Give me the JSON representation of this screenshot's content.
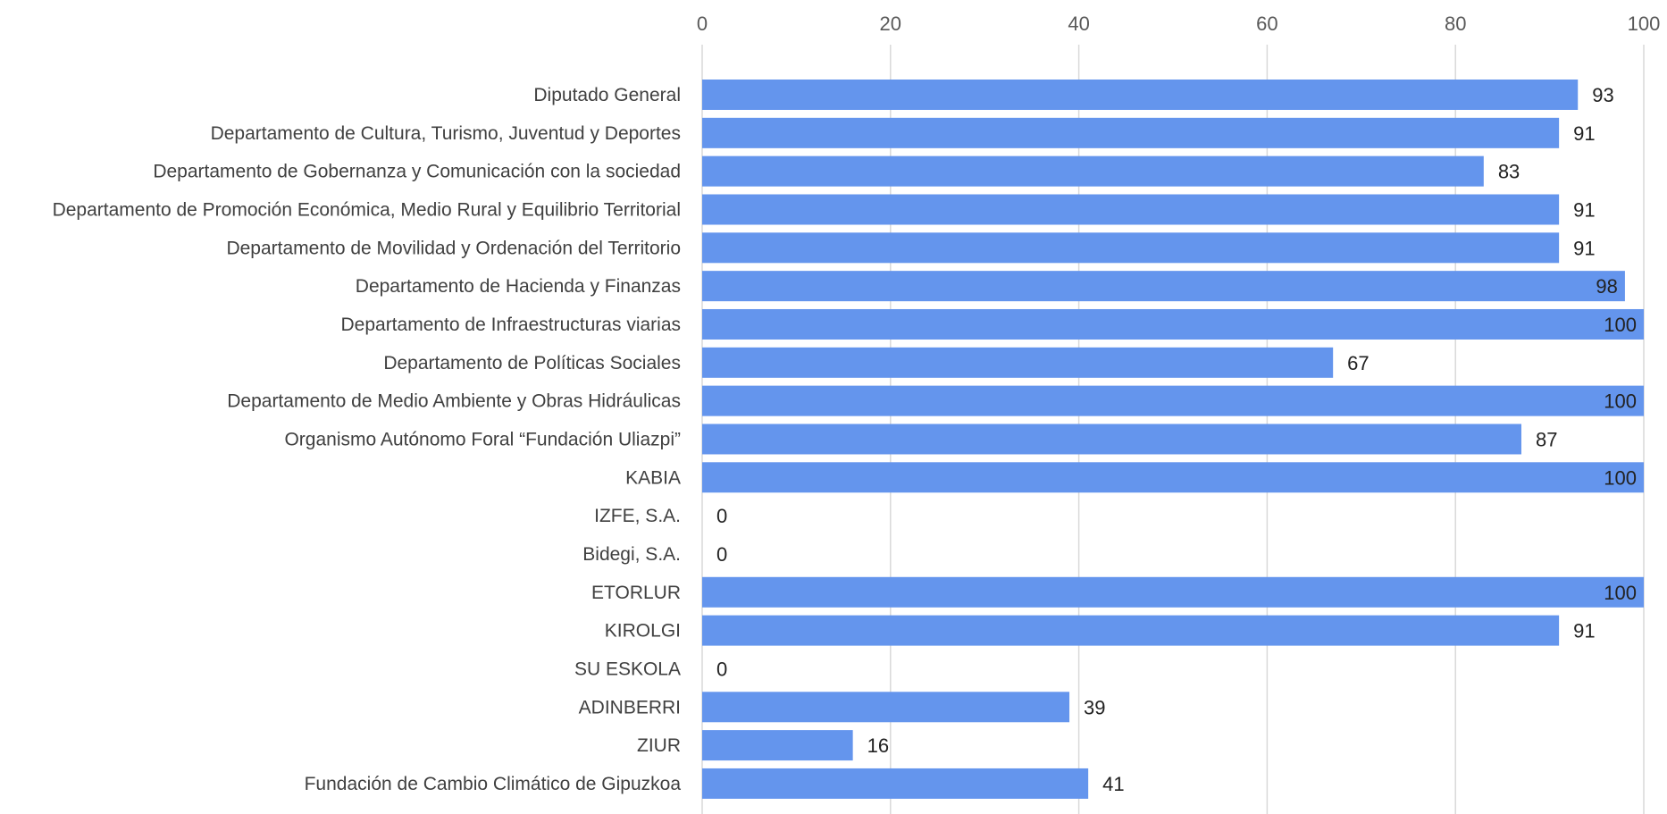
{
  "chart_data": {
    "type": "bar",
    "orientation": "horizontal",
    "categories": [
      "Diputado General",
      "Departamento de Cultura, Turismo, Juventud y Deportes",
      "Departamento de Gobernanza y Comunicación con la sociedad",
      "Departamento de Promoción Económica, Medio Rural y Equilibrio Territorial",
      "Departamento de Movilidad y Ordenación del Territorio",
      "Departamento de Hacienda y Finanzas",
      "Departamento de Infraestructuras viarias",
      "Departamento de Políticas Sociales",
      "Departamento de Medio Ambiente y Obras Hidráulicas",
      "Organismo Autónomo Foral “Fundación Uliazpi”",
      "KABIA",
      "IZFE, S.A.",
      "Bidegi, S.A.",
      "ETORLUR",
      "KIROLGI",
      "SU ESKOLA",
      "ADINBERRI",
      "ZIUR",
      "Fundación de Cambio Climático de Gipuzkoa"
    ],
    "values": [
      93,
      91,
      83,
      91,
      91,
      98,
      100,
      67,
      100,
      87,
      100,
      0,
      0,
      100,
      91,
      0,
      39,
      16,
      41
    ],
    "xlim": [
      0,
      100
    ],
    "xticks": [
      0,
      20,
      40,
      60,
      80,
      100
    ],
    "axis_position": "top",
    "grid": true,
    "data_labels": true,
    "bar_color": "#6495ED",
    "grid_color": "#d9d9d9"
  }
}
